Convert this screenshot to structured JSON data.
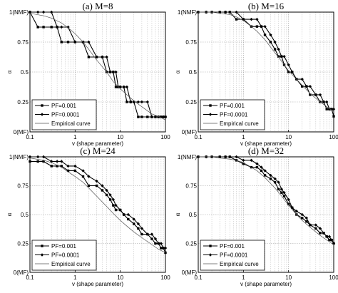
{
  "chart_data": [
    {
      "type": "line",
      "title": "(a) M=8",
      "xlabel": "v (shape parameter)",
      "ylabel": "α",
      "xscale": "log",
      "xlim": [
        0.1,
        100
      ],
      "ylim": [
        0,
        1
      ],
      "x_ticks": [
        0.1,
        1,
        10,
        100
      ],
      "x_tick_labels": [
        "0.1",
        "1",
        "10",
        "100"
      ],
      "y_ticks": [
        0,
        0.25,
        0.5,
        0.75,
        1
      ],
      "y_tick_labels": [
        "0(MF)",
        "0.25",
        "0.5",
        "0.75",
        "1(NMF)"
      ],
      "grid": true,
      "legend_position": "bottom-left",
      "series": [
        {
          "name": "PF=0.001",
          "style": "solid-square",
          "x": [
            0.1,
            0.15,
            0.2,
            0.3,
            0.4,
            0.5,
            0.7,
            1,
            1.5,
            2,
            3,
            4,
            5,
            6,
            7,
            8,
            9,
            10,
            12,
            14,
            17,
            20,
            25,
            30,
            40,
            50,
            60,
            70,
            80,
            90,
            100
          ],
          "y": [
            1,
            0.875,
            0.875,
            0.875,
            0.875,
            0.75,
            0.75,
            0.75,
            0.75,
            0.625,
            0.625,
            0.625,
            0.5,
            0.5,
            0.5,
            0.375,
            0.375,
            0.375,
            0.375,
            0.25,
            0.25,
            0.25,
            0.125,
            0.125,
            0.125,
            0.125,
            0.125,
            0.125,
            0.125,
            0.125,
            0.125
          ]
        },
        {
          "name": "PF=0.0001",
          "style": "solid-diamond",
          "x": [
            0.1,
            0.15,
            0.2,
            0.3,
            0.4,
            0.5,
            0.7,
            1,
            1.5,
            2,
            3,
            4,
            5,
            6,
            7,
            8,
            9,
            10,
            12,
            14,
            17,
            20,
            25,
            30,
            40,
            50,
            60,
            70,
            80,
            90,
            100
          ],
          "y": [
            1,
            1,
            1,
            1,
            0.875,
            0.875,
            0.875,
            0.75,
            0.75,
            0.75,
            0.625,
            0.625,
            0.625,
            0.5,
            0.5,
            0.5,
            0.375,
            0.375,
            0.375,
            0.375,
            0.25,
            0.25,
            0.25,
            0.25,
            0.25,
            0.125,
            0.125,
            0.125,
            0.125,
            0.125,
            0.125
          ]
        },
        {
          "name": "Empirical curve",
          "style": "thin",
          "x": [
            0.1,
            0.2,
            0.3,
            0.5,
            0.7,
            1,
            1.5,
            2,
            3,
            5,
            7,
            10,
            15,
            20,
            30,
            50,
            70,
            100
          ],
          "y": [
            0.99,
            0.97,
            0.95,
            0.91,
            0.87,
            0.82,
            0.75,
            0.69,
            0.6,
            0.5,
            0.42,
            0.36,
            0.3,
            0.26,
            0.21,
            0.15,
            0.13,
            0.1
          ]
        }
      ]
    },
    {
      "type": "line",
      "title": "(b) M=16",
      "xlabel": "v (shape parameter)",
      "ylabel": "α",
      "xscale": "log",
      "xlim": [
        0.1,
        100
      ],
      "ylim": [
        0,
        1
      ],
      "x_ticks": [
        0.1,
        1,
        10,
        100
      ],
      "x_tick_labels": [
        "0.1",
        "1",
        "10",
        "100"
      ],
      "y_ticks": [
        0,
        0.25,
        0.5,
        0.75,
        1
      ],
      "y_tick_labels": [
        "0(MF)",
        "0.25",
        "0.5",
        "0.75",
        "1(NMF)"
      ],
      "grid": true,
      "legend_position": "bottom-left",
      "series": [
        {
          "name": "PF=0.001",
          "style": "solid-square",
          "x": [
            0.1,
            0.15,
            0.2,
            0.3,
            0.4,
            0.5,
            0.7,
            1,
            1.5,
            2,
            2.5,
            3,
            4,
            5,
            6,
            7,
            8,
            10,
            12,
            15,
            20,
            25,
            30,
            40,
            50,
            60,
            70,
            80,
            90,
            100
          ],
          "y": [
            1,
            1,
            1,
            1,
            1,
            1,
            0.94,
            0.94,
            0.88,
            0.88,
            0.88,
            0.81,
            0.75,
            0.69,
            0.63,
            0.63,
            0.56,
            0.5,
            0.5,
            0.44,
            0.38,
            0.38,
            0.31,
            0.31,
            0.25,
            0.25,
            0.19,
            0.19,
            0.19,
            0.13
          ]
        },
        {
          "name": "PF=0.0001",
          "style": "solid-diamond",
          "x": [
            0.1,
            0.15,
            0.2,
            0.3,
            0.4,
            0.5,
            0.7,
            1,
            1.5,
            2,
            2.5,
            3,
            4,
            5,
            6,
            7,
            8,
            10,
            12,
            15,
            20,
            25,
            30,
            40,
            50,
            60,
            70,
            80,
            90,
            100
          ],
          "y": [
            1,
            1,
            1,
            1,
            1,
            1,
            1,
            0.94,
            0.94,
            0.94,
            0.88,
            0.88,
            0.81,
            0.75,
            0.69,
            0.63,
            0.63,
            0.56,
            0.5,
            0.44,
            0.44,
            0.38,
            0.38,
            0.31,
            0.31,
            0.25,
            0.25,
            0.19,
            0.19,
            0.19
          ]
        },
        {
          "name": "Empirical curve",
          "style": "thin",
          "x": [
            0.1,
            0.2,
            0.3,
            0.5,
            0.7,
            1,
            1.5,
            2,
            3,
            5,
            7,
            10,
            15,
            20,
            30,
            50,
            70,
            100
          ],
          "y": [
            1,
            1,
            0.99,
            0.98,
            0.96,
            0.93,
            0.88,
            0.84,
            0.77,
            0.66,
            0.59,
            0.51,
            0.44,
            0.39,
            0.32,
            0.25,
            0.21,
            0.17
          ]
        }
      ]
    },
    {
      "type": "line",
      "title": "(c) M=24",
      "xlabel": "v (shape parameter)",
      "ylabel": "α",
      "xscale": "log",
      "xlim": [
        0.1,
        100
      ],
      "ylim": [
        0,
        1
      ],
      "x_ticks": [
        0.1,
        1,
        10,
        100
      ],
      "x_tick_labels": [
        "0.1",
        "1",
        "10",
        "100"
      ],
      "y_ticks": [
        0,
        0.25,
        0.5,
        0.75,
        1
      ],
      "y_tick_labels": [
        "0(MF)",
        "0.25",
        "0.5",
        "0.75",
        "1(NMF)"
      ],
      "grid": true,
      "legend_position": "bottom-left",
      "series": [
        {
          "name": "PF=0.001",
          "style": "solid-square",
          "x": [
            0.1,
            0.15,
            0.2,
            0.3,
            0.4,
            0.5,
            0.7,
            1,
            1.5,
            2,
            3,
            4,
            5,
            6,
            7,
            8,
            10,
            12,
            15,
            20,
            25,
            30,
            40,
            50,
            60,
            70,
            80,
            90,
            100
          ],
          "y": [
            0.96,
            0.96,
            0.96,
            0.92,
            0.92,
            0.92,
            0.88,
            0.88,
            0.83,
            0.75,
            0.75,
            0.71,
            0.67,
            0.63,
            0.58,
            0.54,
            0.54,
            0.5,
            0.46,
            0.42,
            0.38,
            0.33,
            0.33,
            0.29,
            0.25,
            0.25,
            0.21,
            0.21,
            0.17
          ]
        },
        {
          "name": "PF=0.0001",
          "style": "solid-diamond",
          "x": [
            0.1,
            0.15,
            0.2,
            0.3,
            0.4,
            0.5,
            0.7,
            1,
            1.5,
            2,
            3,
            4,
            5,
            6,
            7,
            8,
            10,
            12,
            15,
            20,
            25,
            30,
            40,
            50,
            60,
            70,
            80,
            90,
            100
          ],
          "y": [
            1,
            1,
            1,
            0.96,
            0.96,
            0.96,
            0.92,
            0.92,
            0.88,
            0.83,
            0.79,
            0.75,
            0.71,
            0.67,
            0.63,
            0.58,
            0.54,
            0.5,
            0.5,
            0.46,
            0.42,
            0.38,
            0.33,
            0.33,
            0.29,
            0.25,
            0.25,
            0.21,
            0.21
          ]
        },
        {
          "name": "Empirical curve",
          "style": "thin",
          "x": [
            0.1,
            0.2,
            0.3,
            0.5,
            0.7,
            1,
            1.5,
            2,
            3,
            5,
            7,
            10,
            15,
            20,
            30,
            50,
            70,
            100
          ],
          "y": [
            0.99,
            0.97,
            0.95,
            0.91,
            0.87,
            0.83,
            0.78,
            0.73,
            0.66,
            0.57,
            0.51,
            0.45,
            0.39,
            0.35,
            0.3,
            0.24,
            0.2,
            0.17
          ]
        }
      ]
    },
    {
      "type": "line",
      "title": "(d) M=32",
      "xlabel": "v (shape parameter)",
      "ylabel": "α",
      "xscale": "log",
      "xlim": [
        0.1,
        100
      ],
      "ylim": [
        0,
        1
      ],
      "x_ticks": [
        0.1,
        1,
        10,
        100
      ],
      "x_tick_labels": [
        "0.1",
        "1",
        "10",
        "100"
      ],
      "y_ticks": [
        0,
        0.25,
        0.5,
        0.75,
        1
      ],
      "y_tick_labels": [
        "0(MF)",
        "0.25",
        "0.5",
        "0.75",
        "1(NMF)"
      ],
      "grid": true,
      "legend_position": "bottom-left",
      "series": [
        {
          "name": "PF=0.001",
          "style": "solid-square",
          "x": [
            0.1,
            0.15,
            0.2,
            0.3,
            0.4,
            0.5,
            0.7,
            1,
            1.5,
            2,
            2.5,
            3,
            4,
            5,
            6,
            7,
            8,
            10,
            12,
            15,
            20,
            25,
            30,
            40,
            50,
            60,
            70,
            80,
            90,
            100
          ],
          "y": [
            1,
            1,
            1,
            1,
            1,
            1,
            0.97,
            0.94,
            0.91,
            0.91,
            0.88,
            0.84,
            0.81,
            0.78,
            0.72,
            0.69,
            0.66,
            0.59,
            0.56,
            0.5,
            0.47,
            0.44,
            0.41,
            0.38,
            0.34,
            0.34,
            0.31,
            0.28,
            0.28,
            0.25
          ]
        },
        {
          "name": "PF=0.0001",
          "style": "solid-diamond",
          "x": [
            0.1,
            0.15,
            0.2,
            0.3,
            0.4,
            0.5,
            0.7,
            1,
            1.5,
            2,
            2.5,
            3,
            4,
            5,
            6,
            7,
            8,
            10,
            12,
            15,
            20,
            25,
            30,
            40,
            50,
            60,
            70,
            80,
            90,
            100
          ],
          "y": [
            1,
            1,
            1,
            1,
            1,
            1,
            1,
            0.97,
            0.97,
            0.94,
            0.91,
            0.88,
            0.84,
            0.81,
            0.78,
            0.72,
            0.69,
            0.63,
            0.56,
            0.53,
            0.5,
            0.47,
            0.41,
            0.41,
            0.38,
            0.34,
            0.31,
            0.31,
            0.28,
            0.25
          ]
        },
        {
          "name": "Empirical curve",
          "style": "thin",
          "x": [
            0.1,
            0.2,
            0.3,
            0.5,
            0.7,
            1,
            1.5,
            2,
            3,
            5,
            7,
            10,
            15,
            20,
            30,
            50,
            70,
            100
          ],
          "y": [
            1,
            1,
            0.99,
            0.98,
            0.97,
            0.95,
            0.91,
            0.88,
            0.82,
            0.73,
            0.66,
            0.58,
            0.5,
            0.45,
            0.39,
            0.32,
            0.28,
            0.24
          ]
        }
      ]
    }
  ]
}
